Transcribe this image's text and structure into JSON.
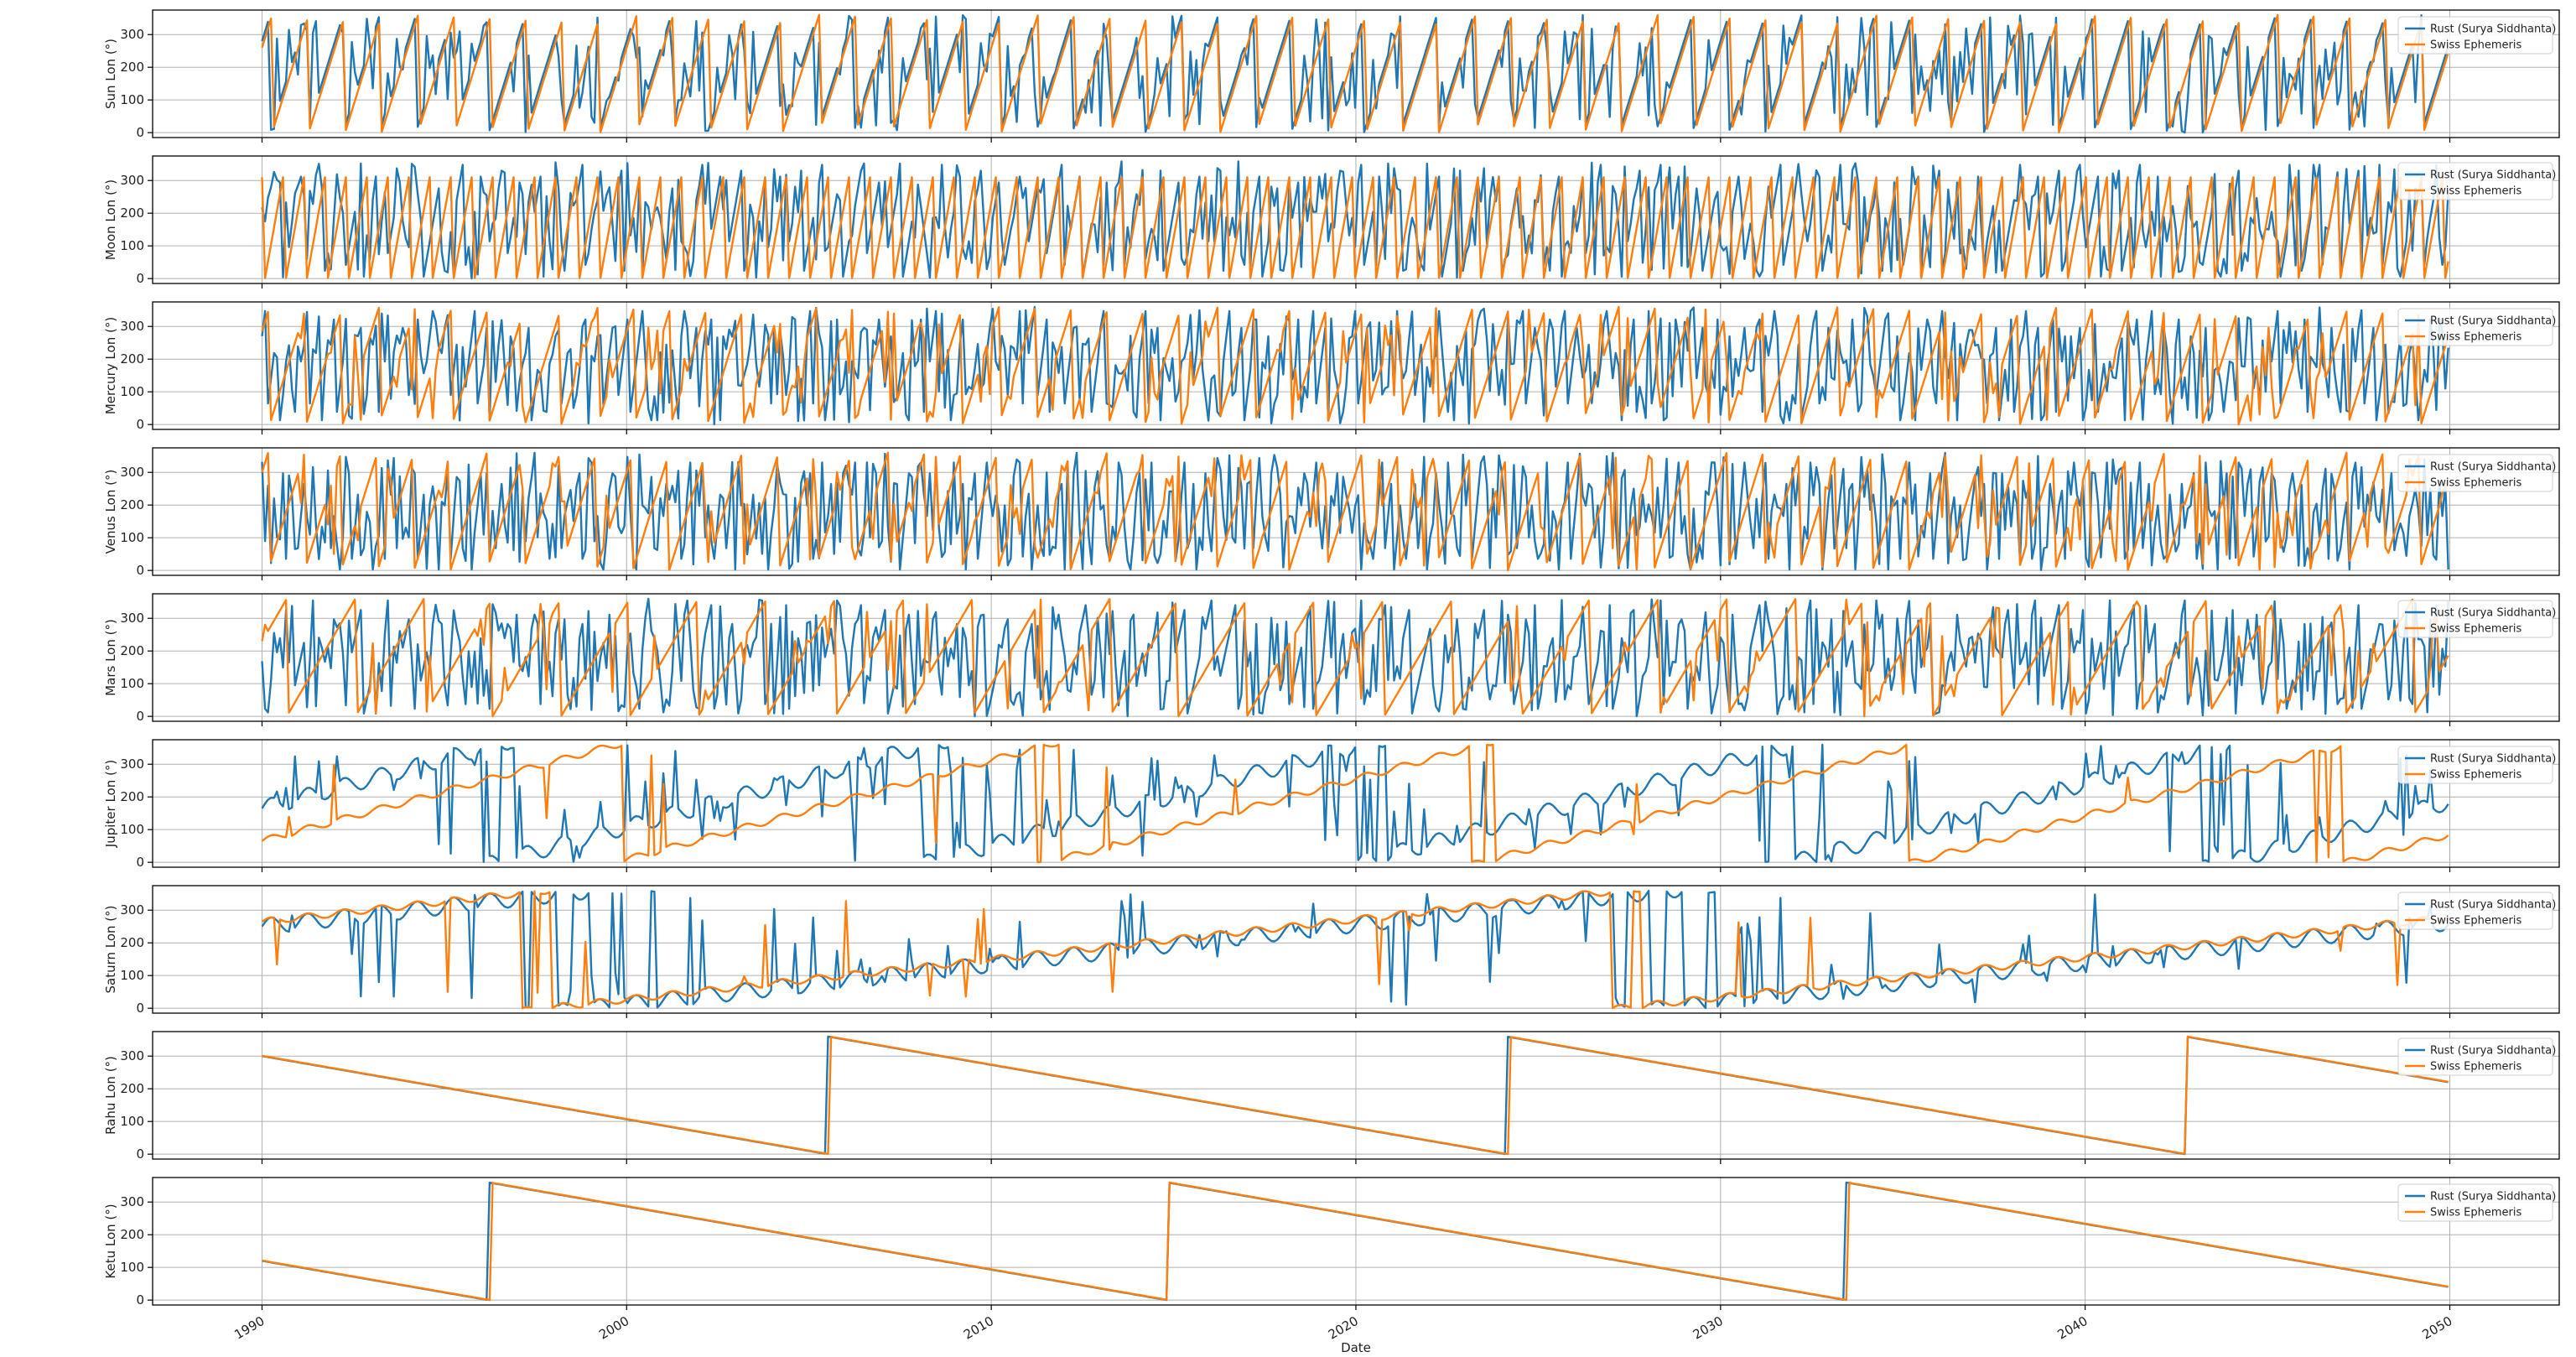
{
  "figure": {
    "xlabel": "Date",
    "x_ticks": [
      "1990",
      "2000",
      "2010",
      "2020",
      "2030",
      "2040",
      "2050"
    ],
    "y_ticks": [
      0,
      100,
      200,
      300
    ],
    "grid": true,
    "legend_placement": "top-right"
  },
  "series_styles": [
    {
      "name": "Rust (Surya Siddhanta)",
      "color": "#1f77b4"
    },
    {
      "name": "Swiss Ephemeris",
      "color": "#ff7f0e"
    }
  ],
  "chart_data": [
    {
      "type": "line",
      "ylabel": "Sun Lon (°)",
      "xlim": [
        "1987-01-01",
        "2053-01-01"
      ],
      "ylim": [
        -15,
        375
      ],
      "legend": [
        "Rust (Surya Siddhanta)",
        "Swiss Ephemeris"
      ],
      "rust": {
        "kind": "sawtooth",
        "start_date": "1990-01-01",
        "end_date": "2050-01-01",
        "period_days": 365.25,
        "phase0": 280,
        "direction": 1,
        "jitter": 0.35
      },
      "swiss": {
        "kind": "sawtooth",
        "start_date": "1990-01-01",
        "end_date": "2050-01-01",
        "period_days": 365.25,
        "phase0": 260,
        "direction": 1,
        "jitter": 0
      }
    },
    {
      "type": "line",
      "ylabel": "Moon Lon (°)",
      "xlim": [
        "1987-01-01",
        "2053-01-01"
      ],
      "ylim": [
        -15,
        375
      ],
      "legend": [
        "Rust (Surya Siddhanta)",
        "Swiss Ephemeris"
      ],
      "rust": {
        "kind": "sawtooth",
        "start_date": "1990-01-01",
        "end_date": "2050-01-01",
        "period_days": 200,
        "phase0": 330,
        "direction": 1,
        "jitter": 0.45
      },
      "swiss": {
        "kind": "sawtooth",
        "start_date": "1990-01-01",
        "end_date": "2050-01-01",
        "period_days": 210,
        "phase0": 310,
        "direction": 1,
        "jitter": 0
      }
    },
    {
      "type": "line",
      "ylabel": "Mercury Lon (°)",
      "xlim": [
        "1987-01-01",
        "2053-01-01"
      ],
      "ylim": [
        -15,
        375
      ],
      "legend": [
        "Rust (Surya Siddhanta)",
        "Swiss Ephemeris"
      ],
      "rust": {
        "kind": "sawtooth",
        "start_date": "1990-01-01",
        "end_date": "2050-01-01",
        "period_days": 140,
        "phase0": 270,
        "direction": 1,
        "jitter": 0.55
      },
      "swiss": {
        "kind": "sawtooth",
        "start_date": "1990-01-01",
        "end_date": "2050-01-01",
        "period_days": 365.25,
        "phase0": 285,
        "direction": 1,
        "jitter": 0.12
      }
    },
    {
      "type": "line",
      "ylabel": "Venus Lon (°)",
      "xlim": [
        "1987-01-01",
        "2053-01-01"
      ],
      "ylim": [
        -15,
        375
      ],
      "legend": [
        "Rust (Surya Siddhanta)",
        "Swiss Ephemeris"
      ],
      "rust": {
        "kind": "sawtooth",
        "start_date": "1990-01-01",
        "end_date": "2050-01-01",
        "period_days": 110,
        "phase0": 330,
        "direction": 1,
        "jitter": 0.6
      },
      "swiss": {
        "kind": "sawtooth",
        "start_date": "1990-01-01",
        "end_date": "2050-01-01",
        "period_days": 365.25,
        "phase0": 300,
        "direction": 1,
        "jitter": 0.1
      }
    },
    {
      "type": "line",
      "ylabel": "Mars Lon (°)",
      "xlim": [
        "1987-01-01",
        "2053-01-01"
      ],
      "ylim": [
        -15,
        375
      ],
      "legend": [
        "Rust (Surya Siddhanta)",
        "Swiss Ephemeris"
      ],
      "rust": {
        "kind": "sawtooth",
        "start_date": "1990-01-01",
        "end_date": "2050-01-01",
        "period_days": 250,
        "phase0": 340,
        "direction": 1,
        "jitter": 0.5
      },
      "swiss": {
        "kind": "sawtooth",
        "start_date": "1990-01-01",
        "end_date": "2050-01-01",
        "period_days": 687,
        "phase0": 230,
        "direction": 1,
        "jitter": 0.1
      }
    },
    {
      "type": "line",
      "ylabel": "Jupiter Lon (°)",
      "xlim": [
        "1987-01-01",
        "2053-01-01"
      ],
      "ylim": [
        -15,
        375
      ],
      "legend": [
        "Rust (Surya Siddhanta)",
        "Swiss Ephemeris"
      ],
      "rust": {
        "kind": "sawtooth",
        "start_date": "1990-01-01",
        "end_date": "2050-01-01",
        "period_days": 4332.6,
        "phase0": 165,
        "direction": 1,
        "jitter": 0.15,
        "wobble": 25
      },
      "swiss": {
        "kind": "sawtooth",
        "start_date": "1990-01-01",
        "end_date": "2050-01-01",
        "period_days": 4332.6,
        "phase0": 65,
        "direction": 1,
        "jitter": 0.02,
        "wobble": 10
      }
    },
    {
      "type": "line",
      "ylabel": "Saturn Lon (°)",
      "xlim": [
        "1987-01-01",
        "2053-01-01"
      ],
      "ylim": [
        -15,
        375
      ],
      "legend": [
        "Rust (Surya Siddhanta)",
        "Swiss Ephemeris"
      ],
      "rust": {
        "kind": "sawtooth",
        "start_date": "1990-01-01",
        "end_date": "2050-01-01",
        "period_days": 10759,
        "phase0": 250,
        "direction": 1,
        "jitter": 0.1,
        "wobble": 25
      },
      "swiss": {
        "kind": "sawtooth",
        "start_date": "1990-01-01",
        "end_date": "2050-01-01",
        "period_days": 10759,
        "phase0": 265,
        "direction": 1,
        "jitter": 0.02,
        "wobble": 10
      }
    },
    {
      "type": "line",
      "ylabel": "Rahu Lon (°)",
      "xlim": [
        "1987-01-01",
        "2053-01-01"
      ],
      "ylim": [
        -15,
        375
      ],
      "legend": [
        "Rust (Surya Siddhanta)",
        "Swiss Ephemeris"
      ],
      "rust": {
        "kind": "sawtooth",
        "start_date": "1990-01-01",
        "end_date": "2050-01-01",
        "period_days": 6798,
        "phase0": 300,
        "direction": -1,
        "jitter": 0
      },
      "swiss": {
        "kind": "sawtooth",
        "start_date": "1990-01-01",
        "end_date": "2050-01-01",
        "period_days": 6798,
        "phase0": 301,
        "direction": -1,
        "jitter": 0
      }
    },
    {
      "type": "line",
      "ylabel": "Ketu Lon (°)",
      "xlim": [
        "1987-01-01",
        "2053-01-01"
      ],
      "ylim": [
        -15,
        375
      ],
      "legend": [
        "Rust (Surya Siddhanta)",
        "Swiss Ephemeris"
      ],
      "rust": {
        "kind": "sawtooth",
        "start_date": "1990-01-01",
        "end_date": "2050-01-01",
        "period_days": 6798,
        "phase0": 120,
        "direction": -1,
        "jitter": 0
      },
      "swiss": {
        "kind": "sawtooth",
        "start_date": "1990-01-01",
        "end_date": "2050-01-01",
        "period_days": 6798,
        "phase0": 121,
        "direction": -1,
        "jitter": 0
      }
    }
  ]
}
